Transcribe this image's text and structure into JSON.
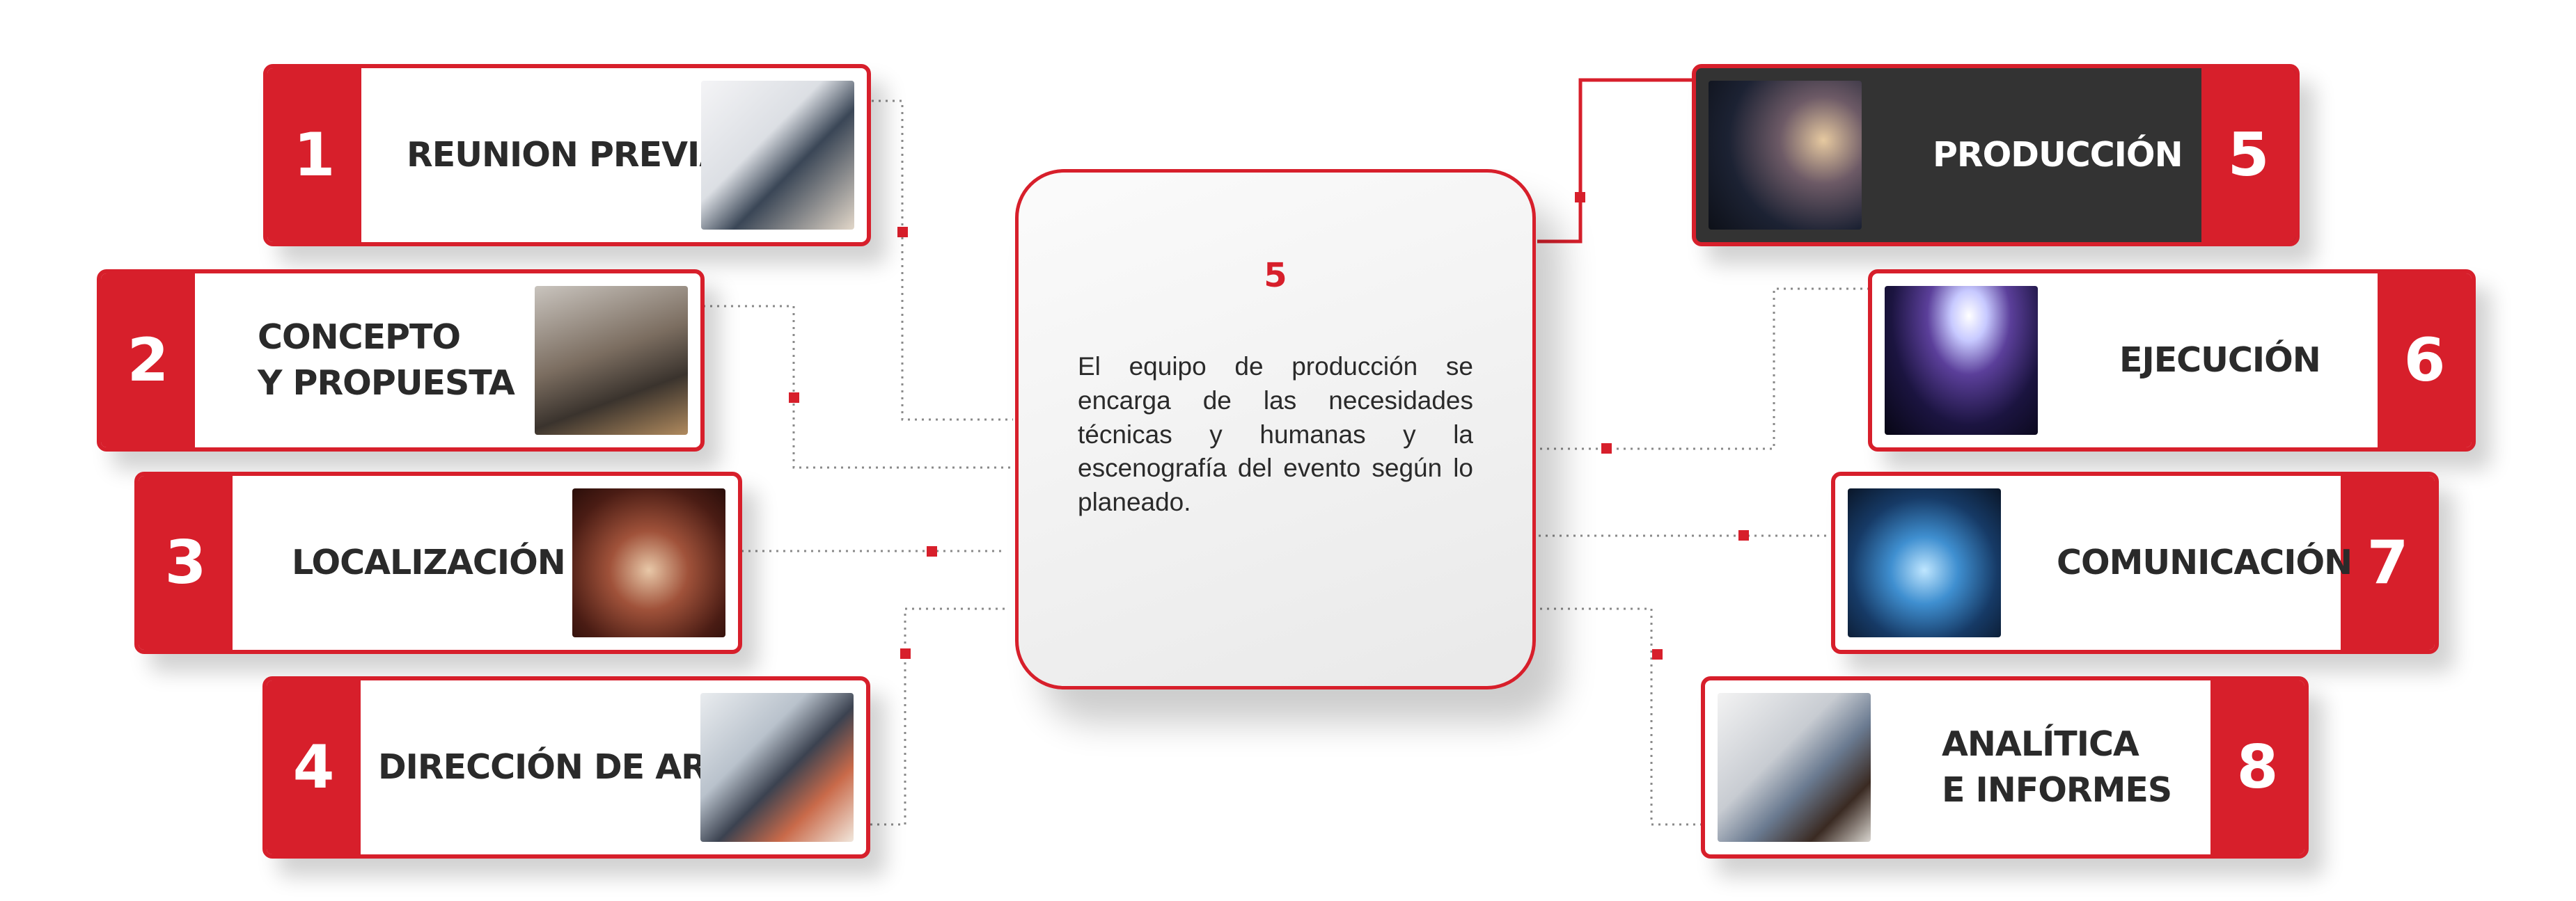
{
  "colors": {
    "accent": "#d71f2b",
    "dark": "#333333",
    "text": "#2a2a2a"
  },
  "center": {
    "number": "5",
    "description": "El equipo de producción se encarga de las necesidades técnicas y humanas y la escenografía del evento según lo planeado."
  },
  "steps": [
    {
      "number": "1",
      "label": "REUNION PREVIA",
      "image": "business-handshake-photo"
    },
    {
      "number": "2",
      "label": "CONCEPTO\nY PROPUESTA",
      "image": "meeting-presentation-photo"
    },
    {
      "number": "3",
      "label": "LOCALIZACIÓN",
      "image": "banquet-hall-photo"
    },
    {
      "number": "4",
      "label": "DIRECCIÓN DE ARTE",
      "image": "designers-at-computer-photo"
    },
    {
      "number": "5",
      "label": "PRODUCCIÓN",
      "image": "camera-operator-photo",
      "active": true
    },
    {
      "number": "6",
      "label": "EJECUCIÓN",
      "image": "event-stage-audience-photo"
    },
    {
      "number": "7",
      "label": "COMUNICACIÓN",
      "image": "digital-network-tablet-photo"
    },
    {
      "number": "8",
      "label": "ANALÍTICA\nE INFORMES",
      "image": "charts-report-photo"
    }
  ]
}
